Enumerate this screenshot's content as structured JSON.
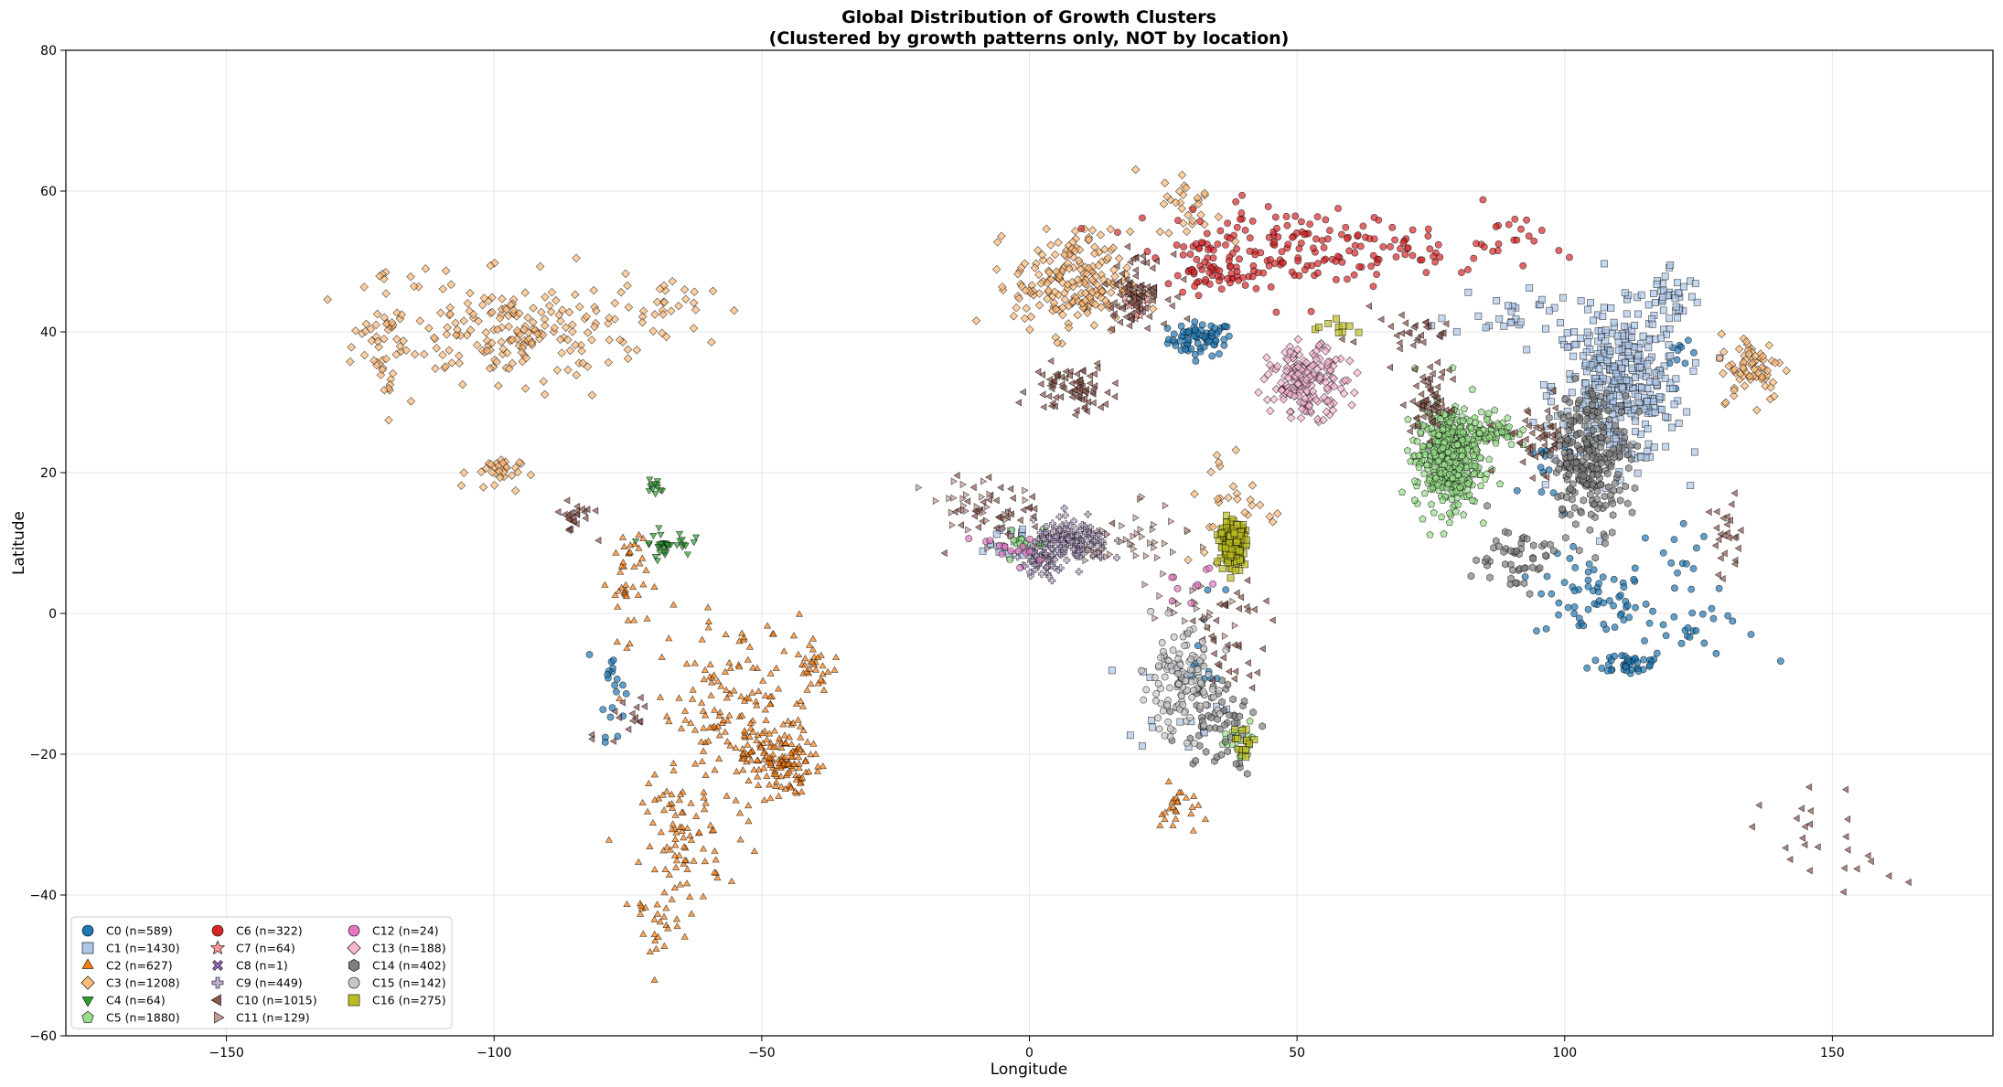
{
  "chart_data": {
    "type": "scatter",
    "title": "Global Distribution of Growth Clusters",
    "subtitle": "(Clustered by growth patterns only, NOT by location)",
    "xlabel": "Longitude",
    "ylabel": "Latitude",
    "xlim": [
      -180,
      180
    ],
    "ylim": [
      -60,
      80
    ],
    "xticks": [
      -150,
      -100,
      -50,
      0,
      50,
      100,
      150
    ],
    "yticks": [
      -60,
      -40,
      -20,
      0,
      20,
      40,
      60,
      80
    ],
    "grid": true,
    "legend_position": "lower-left",
    "series": [
      {
        "name": "C0 (n=589)",
        "color": "#1f77b4",
        "marker": "circle",
        "clusters": [
          [
            32,
            39,
            5,
            2,
            70
          ],
          [
            105,
            2,
            9,
            5,
            60
          ],
          [
            112,
            -7,
            6,
            1.5,
            40
          ],
          [
            -78,
            -10,
            2,
            6,
            20
          ],
          [
            124,
            -2,
            10,
            4,
            25
          ],
          [
            96,
            20,
            4,
            6,
            15
          ],
          [
            33,
            -5,
            3,
            8,
            12
          ],
          [
            122,
            10,
            4,
            5,
            12
          ],
          [
            122,
            36,
            2,
            2,
            10
          ]
        ]
      },
      {
        "name": "C1 (n=1430)",
        "color": "#aec7e8",
        "marker": "square",
        "clusters": [
          [
            110,
            32,
            10,
            9,
            380
          ],
          [
            120,
            45,
            5,
            4,
            40
          ],
          [
            90,
            43,
            10,
            3,
            30
          ],
          [
            28,
            -12,
            8,
            6,
            20
          ],
          [
            -5,
            10,
            6,
            3,
            20
          ]
        ]
      },
      {
        "name": "C2 (n=627)",
        "color": "#ff7f0e",
        "marker": "triangle",
        "clusters": [
          [
            -47,
            -21,
            5,
            4,
            120
          ],
          [
            -55,
            -15,
            12,
            12,
            160
          ],
          [
            -65,
            -33,
            6,
            8,
            80
          ],
          [
            -40,
            -8,
            3,
            3,
            30
          ],
          [
            -75,
            5,
            3,
            7,
            40
          ],
          [
            28,
            -28,
            3,
            3,
            25
          ],
          [
            -70,
            -45,
            4,
            5,
            20
          ]
        ]
      },
      {
        "name": "C3 (n=1208)",
        "color": "#ffbb78",
        "marker": "diamond",
        "clusters": [
          [
            -95,
            40,
            20,
            6,
            200
          ],
          [
            -120,
            40,
            4,
            9,
            50
          ],
          [
            -100,
            20,
            4,
            2,
            30
          ],
          [
            8,
            47,
            9,
            6,
            200
          ],
          [
            135,
            35,
            5,
            4,
            70
          ],
          [
            30,
            58,
            5,
            4,
            30
          ],
          [
            38,
            15,
            8,
            8,
            30
          ],
          [
            -65,
            45,
            6,
            4,
            20
          ]
        ]
      },
      {
        "name": "C4 (n=64)",
        "color": "#2ca02c",
        "marker": "triangle-down",
        "clusters": [
          [
            -68,
            10,
            4,
            1.5,
            35
          ],
          [
            -70,
            18,
            1.5,
            1,
            12
          ]
        ]
      },
      {
        "name": "C5 (n=1880)",
        "color": "#98df8a",
        "marker": "pentagon",
        "clusters": [
          [
            78,
            22,
            5,
            6,
            420
          ],
          [
            85,
            26,
            5,
            2,
            80
          ],
          [
            40,
            -18,
            3,
            2,
            20
          ],
          [
            0,
            10,
            4,
            2,
            20
          ]
        ]
      },
      {
        "name": "C6 (n=322)",
        "color": "#d62728",
        "marker": "circle",
        "clusters": [
          [
            45,
            52,
            20,
            5,
            160
          ],
          [
            70,
            52,
            20,
            4,
            40
          ],
          [
            35,
            48,
            5,
            2,
            30
          ],
          [
            90,
            55,
            6,
            3,
            15
          ]
        ]
      },
      {
        "name": "C7 (n=64)",
        "color": "#ff9896",
        "marker": "star",
        "clusters": [
          [
            20,
            44,
            2,
            2,
            20
          ]
        ]
      },
      {
        "name": "C8 (n=1)",
        "color": "#9467bd",
        "marker": "x",
        "clusters": [
          [
            8,
            11,
            0.5,
            0.5,
            1
          ]
        ]
      },
      {
        "name": "C9 (n=449)",
        "color": "#c5b0d5",
        "marker": "plus",
        "clusters": [
          [
            8,
            10,
            6,
            2.5,
            160
          ],
          [
            2,
            7,
            4,
            2,
            40
          ]
        ]
      },
      {
        "name": "C10 (n=1015)",
        "color": "#8c564b",
        "marker": "triangle-left",
        "clusters": [
          [
            8,
            32,
            6,
            3,
            80
          ],
          [
            20,
            46,
            5,
            4,
            80
          ],
          [
            75,
            30,
            3,
            4,
            60
          ],
          [
            95,
            25,
            6,
            4,
            50
          ],
          [
            38,
            -5,
            6,
            8,
            40
          ],
          [
            -85,
            14,
            3,
            2,
            25
          ],
          [
            130,
            10,
            3,
            5,
            25
          ],
          [
            -5,
            15,
            8,
            4,
            40
          ],
          [
            150,
            -33,
            10,
            6,
            25
          ],
          [
            -75,
            -15,
            4,
            4,
            15
          ],
          [
            70,
            40,
            10,
            3,
            30
          ]
        ]
      },
      {
        "name": "C11 (n=129)",
        "color": "#c49c94",
        "marker": "triangle-right",
        "clusters": [
          [
            20,
            10,
            8,
            4,
            40
          ],
          [
            -10,
            15,
            8,
            4,
            30
          ],
          [
            30,
            0,
            8,
            5,
            20
          ]
        ]
      },
      {
        "name": "C12 (n=24)",
        "color": "#e377c2",
        "marker": "circle",
        "clusters": [
          [
            -5,
            9,
            5,
            2,
            15
          ],
          [
            30,
            3,
            4,
            3,
            10
          ]
        ]
      },
      {
        "name": "C13 (n=188)",
        "color": "#f7b6d2",
        "marker": "diamond",
        "clusters": [
          [
            52,
            33,
            6,
            4,
            180
          ]
        ]
      },
      {
        "name": "C14 (n=402)",
        "color": "#7f7f7f",
        "marker": "hexagon",
        "clusters": [
          [
            105,
            22,
            6,
            8,
            250
          ],
          [
            35,
            -15,
            6,
            6,
            60
          ],
          [
            90,
            8,
            6,
            4,
            50
          ]
        ]
      },
      {
        "name": "C15 (n=142)",
        "color": "#c7c7c7",
        "marker": "circle",
        "clusters": [
          [
            28,
            -10,
            6,
            6,
            120
          ]
        ]
      },
      {
        "name": "C16 (n=275)",
        "color": "#bcbd22",
        "marker": "square",
        "clusters": [
          [
            38,
            10,
            2,
            2.5,
            200
          ],
          [
            40,
            -18,
            2,
            2,
            15
          ],
          [
            58,
            41,
            3,
            1,
            10
          ]
        ]
      }
    ]
  }
}
